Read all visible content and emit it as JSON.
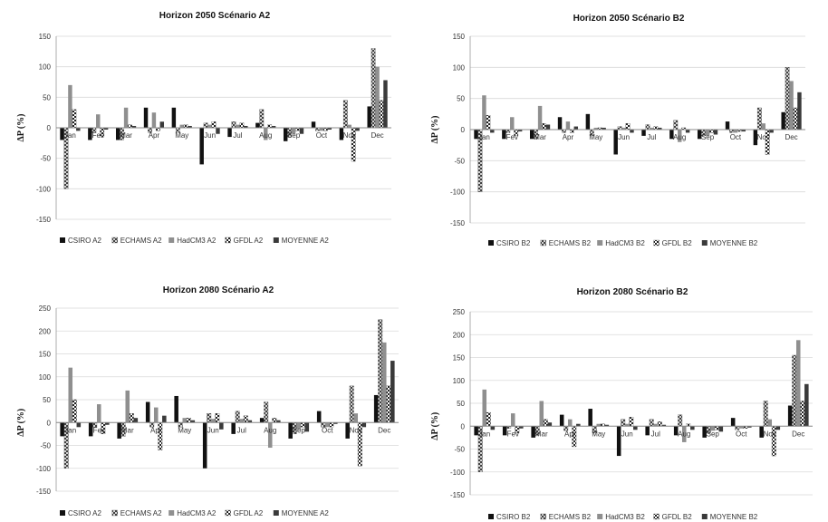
{
  "colors": {
    "CSIRO": "#111111",
    "ECHAMS": "hatch",
    "HadCM3": "#8f8f8f",
    "GFDL": "checker",
    "MOYENNE": "#3a3a3a",
    "axis": "#999999",
    "grid": "#d9d9d9"
  },
  "chart_data": [
    {
      "type": "bar",
      "title": "Horizon 2050  Scénario A2",
      "ylabel": "ΔP (%)",
      "ylim": [
        -150,
        150
      ],
      "yticks": [
        -150,
        -100,
        -50,
        0,
        50,
        100,
        150
      ],
      "grid": true,
      "legend": "bottom",
      "categories": [
        "Jan",
        "Fev",
        "Mar",
        "Apr",
        "May",
        "Jun",
        "Jul",
        "Aug",
        "Sep",
        "Oct",
        "Nov",
        "Dec"
      ],
      "series": [
        {
          "name": "CSIRO A2",
          "key": "CSIRO",
          "values": [
            -20,
            -20,
            -20,
            33,
            33,
            -60,
            -15,
            8,
            -22,
            10,
            -20,
            35
          ]
        },
        {
          "name": "ECHAMS A2",
          "key": "ECHAMS",
          "values": [
            -100,
            -8,
            -20,
            -8,
            -8,
            8,
            10,
            30,
            -15,
            -5,
            45,
            130
          ]
        },
        {
          "name": "HadCM3 A2",
          "key": "HadCM3",
          "values": [
            70,
            22,
            33,
            25,
            5,
            5,
            5,
            -20,
            -10,
            -5,
            5,
            100
          ]
        },
        {
          "name": "GFDL A2",
          "key": "GFDL",
          "values": [
            30,
            -15,
            5,
            -5,
            5,
            10,
            8,
            5,
            -5,
            -5,
            -55,
            45
          ]
        },
        {
          "name": "MOYENNE A2",
          "key": "MOYENNE",
          "values": [
            -5,
            -3,
            3,
            10,
            3,
            -10,
            3,
            3,
            -10,
            -3,
            -5,
            78
          ]
        }
      ]
    },
    {
      "type": "bar",
      "title": "Horizon 2050  Scénario B2",
      "ylabel": "ΔP (%)",
      "ylim": [
        -150,
        150
      ],
      "yticks": [
        -150,
        -100,
        -50,
        0,
        50,
        100,
        150
      ],
      "grid": true,
      "legend": "bottom",
      "categories": [
        "Jan",
        "Fev",
        "Mar",
        "Apr",
        "May",
        "Jun",
        "Jul",
        "Aug",
        "Sep",
        "Oct",
        "Nov",
        "Dec"
      ],
      "series": [
        {
          "name": "CSIRO B2",
          "key": "CSIRO",
          "values": [
            -15,
            -15,
            -15,
            20,
            25,
            -40,
            -10,
            -15,
            -15,
            13,
            -25,
            28
          ]
        },
        {
          "name": "ECHAMS B2",
          "key": "ECHAMS",
          "values": [
            -100,
            -5,
            -15,
            -5,
            -10,
            5,
            8,
            15,
            -10,
            -5,
            35,
            100
          ]
        },
        {
          "name": "HadCM3 B2",
          "key": "HadCM3",
          "values": [
            55,
            20,
            38,
            13,
            3,
            3,
            3,
            -20,
            -10,
            -5,
            10,
            78
          ]
        },
        {
          "name": "GFDL B2",
          "key": "GFDL",
          "values": [
            23,
            -10,
            10,
            -5,
            3,
            10,
            5,
            3,
            -5,
            -3,
            -40,
            35
          ]
        },
        {
          "name": "MOYENNE B2",
          "key": "MOYENNE",
          "values": [
            -5,
            -3,
            8,
            5,
            3,
            -5,
            3,
            -5,
            -8,
            -3,
            -5,
            60
          ]
        }
      ]
    },
    {
      "type": "bar",
      "title": "Horizon 2080  Scénario A2",
      "ylabel": "ΔP (%)",
      "ylim": [
        -150,
        250
      ],
      "yticks": [
        -150,
        -100,
        -50,
        0,
        50,
        100,
        150,
        200,
        250
      ],
      "grid": true,
      "legend": "bottom",
      "categories": [
        "Jan",
        "Fev",
        "Mar",
        "Apr",
        "May",
        "Jun",
        "Jul",
        "Aug",
        "Sep",
        "Oct",
        "Nov",
        "Dec"
      ],
      "series": [
        {
          "name": "CSIRO A2",
          "key": "CSIRO",
          "values": [
            -30,
            -30,
            -35,
            45,
            58,
            -100,
            -25,
            10,
            -35,
            25,
            -35,
            60
          ]
        },
        {
          "name": "ECHAMS A2",
          "key": "ECHAMS",
          "values": [
            -100,
            -10,
            -30,
            -10,
            -10,
            20,
            25,
            45,
            -25,
            -10,
            80,
            225
          ]
        },
        {
          "name": "HadCM3 A2",
          "key": "HadCM3",
          "values": [
            120,
            40,
            70,
            33,
            10,
            8,
            8,
            -55,
            -15,
            -10,
            20,
            175
          ]
        },
        {
          "name": "GFDL A2",
          "key": "GFDL",
          "values": [
            50,
            -25,
            20,
            -60,
            10,
            20,
            15,
            10,
            -10,
            -10,
            -95,
            80
          ]
        },
        {
          "name": "MOYENNE A2",
          "key": "MOYENNE",
          "values": [
            -10,
            -5,
            10,
            15,
            5,
            -15,
            5,
            5,
            -20,
            -3,
            -10,
            135
          ]
        }
      ]
    },
    {
      "type": "bar",
      "title": "Horizon 2080  Scénario B2",
      "ylabel": "ΔP (%)",
      "ylim": [
        -150,
        250
      ],
      "yticks": [
        -150,
        -100,
        -50,
        0,
        50,
        100,
        150,
        200,
        250
      ],
      "grid": true,
      "legend": "bottom",
      "categories": [
        "Jan",
        "Fev",
        "Mar",
        "Apr",
        "May",
        "Jun",
        "Jul",
        "Aug",
        "Sep",
        "Oct",
        "Nov",
        "Dec"
      ],
      "series": [
        {
          "name": "CSIRO B2",
          "key": "CSIRO",
          "values": [
            -20,
            -20,
            -25,
            25,
            38,
            -65,
            -20,
            -20,
            -25,
            18,
            -25,
            45
          ]
        },
        {
          "name": "ECHAMS B2",
          "key": "ECHAMS",
          "values": [
            -100,
            -5,
            -20,
            -10,
            -15,
            15,
            15,
            25,
            -15,
            -8,
            55,
            155
          ]
        },
        {
          "name": "HadCM3 B2",
          "key": "HadCM3",
          "values": [
            80,
            28,
            55,
            15,
            5,
            5,
            5,
            -35,
            -10,
            -5,
            15,
            188
          ]
        },
        {
          "name": "GFDL B2",
          "key": "GFDL",
          "values": [
            30,
            -15,
            15,
            -45,
            5,
            20,
            10,
            5,
            -8,
            -5,
            -65,
            55
          ]
        },
        {
          "name": "MOYENNE B2",
          "key": "MOYENNE",
          "values": [
            -8,
            -5,
            8,
            5,
            3,
            -8,
            3,
            -8,
            -12,
            -3,
            -8,
            92
          ]
        }
      ]
    }
  ]
}
